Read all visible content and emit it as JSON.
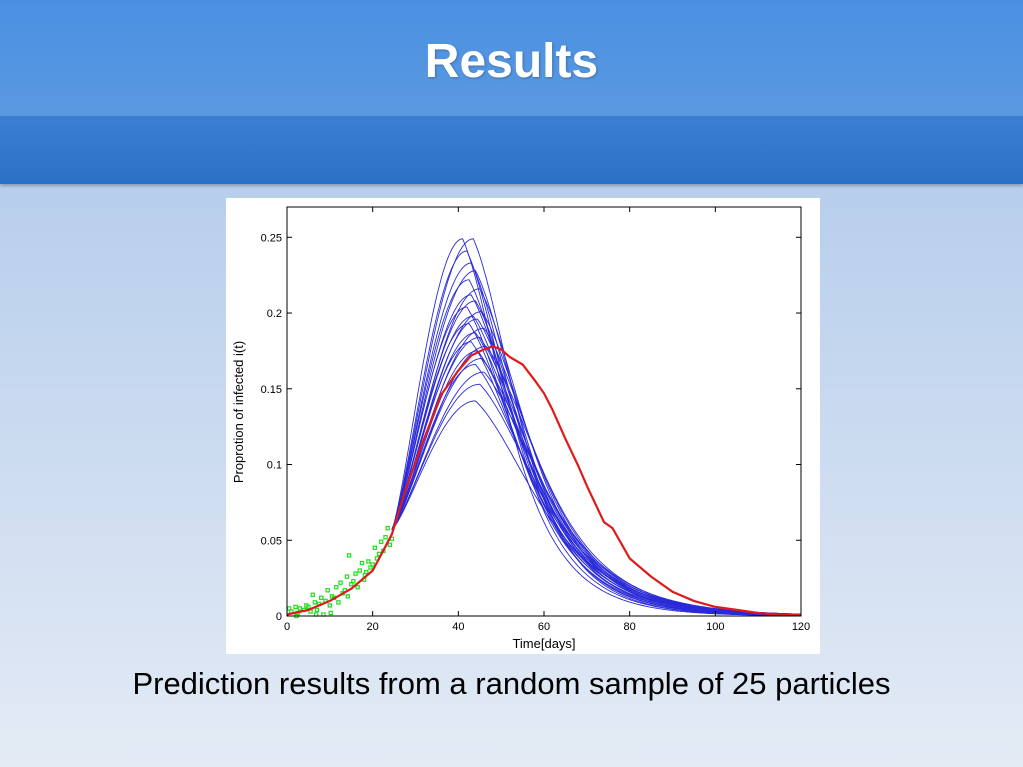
{
  "slide": {
    "title": "Results",
    "caption": "Prediction results from a random sample of 25 particles"
  },
  "colors": {
    "particle_curves": "#2a2ad8",
    "mean_prediction": "#e01a1a",
    "observed_points": "#1ee01e"
  },
  "chart_data": {
    "type": "line",
    "xlabel": "Time[days]",
    "ylabel": "Proprotion of infected i(t)",
    "xlim": [
      0,
      120
    ],
    "ylim": [
      0,
      0.27
    ],
    "xticks": [
      0,
      20,
      40,
      60,
      80,
      100,
      120
    ],
    "yticks": [
      0,
      0.05,
      0.1,
      0.15,
      0.2,
      0.25
    ],
    "ytick_labels": [
      "0",
      "0.05",
      "0.1",
      "0.15",
      "0.2",
      "0.25"
    ],
    "grid": false,
    "legend": "none",
    "fit_start": {
      "x": 24.5,
      "y": 0.057
    },
    "particles": [
      {
        "peak_x": 41.0,
        "peak_y": 0.249
      },
      {
        "peak_x": 43.5,
        "peak_y": 0.249
      },
      {
        "peak_x": 42.0,
        "peak_y": 0.241
      },
      {
        "peak_x": 43.0,
        "peak_y": 0.233
      },
      {
        "peak_x": 44.0,
        "peak_y": 0.228
      },
      {
        "peak_x": 42.5,
        "peak_y": 0.222
      },
      {
        "peak_x": 45.0,
        "peak_y": 0.216
      },
      {
        "peak_x": 43.0,
        "peak_y": 0.212
      },
      {
        "peak_x": 44.0,
        "peak_y": 0.208
      },
      {
        "peak_x": 42.0,
        "peak_y": 0.204
      },
      {
        "peak_x": 45.5,
        "peak_y": 0.201
      },
      {
        "peak_x": 43.5,
        "peak_y": 0.198
      },
      {
        "peak_x": 44.5,
        "peak_y": 0.196
      },
      {
        "peak_x": 42.5,
        "peak_y": 0.193
      },
      {
        "peak_x": 46.0,
        "peak_y": 0.19
      },
      {
        "peak_x": 44.0,
        "peak_y": 0.187
      },
      {
        "peak_x": 45.0,
        "peak_y": 0.184
      },
      {
        "peak_x": 43.0,
        "peak_y": 0.181
      },
      {
        "peak_x": 46.5,
        "peak_y": 0.178
      },
      {
        "peak_x": 44.5,
        "peak_y": 0.175
      },
      {
        "peak_x": 45.5,
        "peak_y": 0.17
      },
      {
        "peak_x": 44.0,
        "peak_y": 0.166
      },
      {
        "peak_x": 46.0,
        "peak_y": 0.161
      },
      {
        "peak_x": 45.0,
        "peak_y": 0.153
      },
      {
        "peak_x": 44.0,
        "peak_y": 0.142
      }
    ],
    "mean_prediction": {
      "x": [
        0,
        5,
        10,
        15,
        20,
        24.5,
        28,
        32,
        36,
        40,
        43,
        46,
        48,
        50,
        52,
        55,
        58,
        60,
        62,
        65,
        68,
        70,
        74,
        76,
        80,
        85,
        90,
        95,
        100,
        105,
        110,
        115,
        120
      ],
      "y": [
        0.001,
        0.004,
        0.01,
        0.018,
        0.03,
        0.054,
        0.086,
        0.117,
        0.146,
        0.162,
        0.172,
        0.176,
        0.178,
        0.176,
        0.171,
        0.166,
        0.155,
        0.147,
        0.136,
        0.117,
        0.099,
        0.086,
        0.062,
        0.058,
        0.038,
        0.026,
        0.016,
        0.01,
        0.006,
        0.004,
        0.002,
        0.001,
        0.0005
      ]
    },
    "observed": {
      "x": [
        0.5,
        1,
        2,
        2.5,
        3,
        4,
        4.5,
        5,
        5.5,
        6,
        6.5,
        7,
        7.5,
        8,
        8.5,
        9,
        9.5,
        10,
        10.5,
        11,
        11.5,
        12,
        12.5,
        13,
        13.5,
        14,
        14.5,
        15,
        15.5,
        16,
        16.5,
        17,
        17.5,
        18,
        18.5,
        19,
        19.5,
        20,
        20.5,
        21,
        21.5,
        22,
        22.5,
        23,
        23.5,
        24,
        24.5,
        2.2,
        6.8,
        10.2,
        14.2,
        18.2
      ],
      "y": [
        0.005,
        0.003,
        0.006,
        0.002,
        0.005,
        0.004,
        0.007,
        0.006,
        0.003,
        0.014,
        0.009,
        0.004,
        0.008,
        0.012,
        0.001,
        0.01,
        0.017,
        0.007,
        0.013,
        0.012,
        0.019,
        0.009,
        0.022,
        0.015,
        0.017,
        0.026,
        0.04,
        0.021,
        0.023,
        0.028,
        0.019,
        0.03,
        0.035,
        0.024,
        0.029,
        0.036,
        0.032,
        0.034,
        0.045,
        0.038,
        0.041,
        0.049,
        0.043,
        0.052,
        0.058,
        0.047,
        0.051,
        0.0,
        0.001,
        0.002,
        0.013,
        0.027
      ]
    }
  }
}
